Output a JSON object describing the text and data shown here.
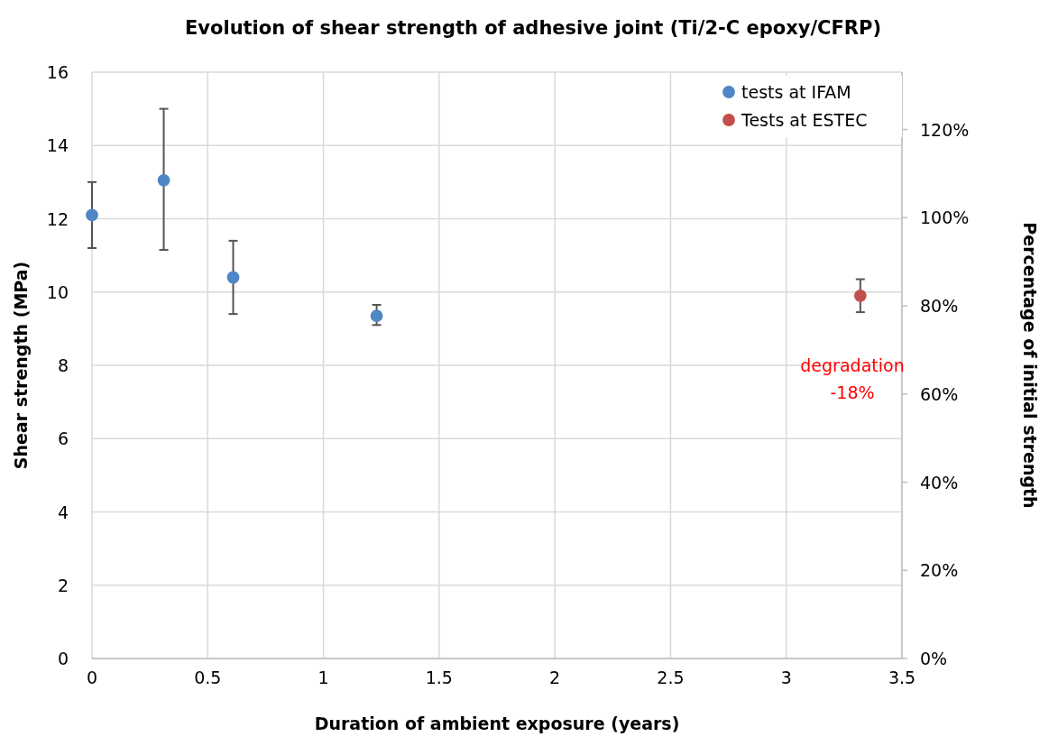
{
  "chart_data": {
    "type": "scatter",
    "title": "Evolution of shear strength of adhesive joint (Ti/2-C epoxy/CFRP)",
    "xlabel": "Duration of ambient exposure (years)",
    "ylabel": "Shear strength (MPa)",
    "y2label": "Percentage of initial strength",
    "series": [
      {
        "name": "tests at IFAM",
        "color": "#4f86c6",
        "x": [
          0,
          0.31,
          0.61,
          1.23
        ],
        "values": [
          12.1,
          13.05,
          10.4,
          9.35
        ],
        "errors": [
          [
            11.2,
            13.0
          ],
          [
            11.15,
            15.0
          ],
          [
            9.4,
            11.4
          ],
          [
            9.1,
            9.65
          ]
        ]
      },
      {
        "name": "Tests at ESTEC",
        "color": "#c0504d",
        "x": [
          3.32
        ],
        "values": [
          9.9
        ],
        "errors": [
          [
            9.45,
            10.35
          ]
        ]
      }
    ],
    "xlim": [
      0,
      3.5
    ],
    "xticks": [
      0,
      {
        "value": 0.5,
        "label": "0.5"
      },
      1,
      {
        "value": 1.5,
        "label": "1.5"
      },
      2,
      {
        "value": 2.5,
        "label": "2.5"
      },
      3,
      {
        "value": 3.5,
        "label": "3.5"
      }
    ],
    "ylim": [
      0,
      16
    ],
    "yticks": [
      0,
      2,
      4,
      6,
      8,
      10,
      12,
      14,
      16
    ],
    "y2lim": [
      0,
      133
    ],
    "y2ticks": [
      {
        "value": 0,
        "label": "0%"
      },
      {
        "value": 20,
        "label": "20%"
      },
      {
        "value": 40,
        "label": "40%"
      },
      {
        "value": 60,
        "label": "60%"
      },
      {
        "value": 80,
        "label": "80%"
      },
      {
        "value": 100,
        "label": "100%"
      },
      {
        "value": 120,
        "label": "120%"
      }
    ],
    "annotations": [
      "degradation\n-18%"
    ],
    "grid": true,
    "legend": "top right",
    "marker": "circle"
  }
}
